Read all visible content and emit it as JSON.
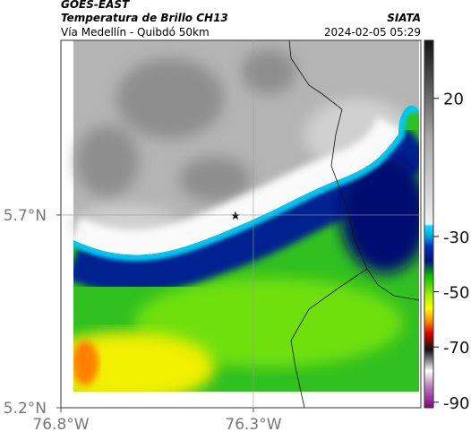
{
  "header": {
    "satellite": "GOES-EAST",
    "product": "Temperatura de Brillo CH13",
    "organization": "SIATA",
    "subtitle": "Vía Medellín - Quibdó 50km",
    "timestamp": "2024-02-05 05:29"
  },
  "map": {
    "latlim": [
      5.2,
      6.153
    ],
    "lonlim": [
      -76.8,
      -75.865
    ],
    "lat_ticks": [
      {
        "value": 5.7,
        "label": "5.7°N"
      },
      {
        "value": 5.2,
        "label": "5.2°N"
      }
    ],
    "lon_ticks": [
      {
        "value": -76.8,
        "label": "76.8°W"
      },
      {
        "value": -76.3,
        "label": "76.3°W"
      }
    ],
    "grid": true
  },
  "colorbar": {
    "lim": [
      41,
      -92
    ],
    "ticks": [
      20,
      -30,
      -50,
      -70,
      -90
    ]
  }
}
